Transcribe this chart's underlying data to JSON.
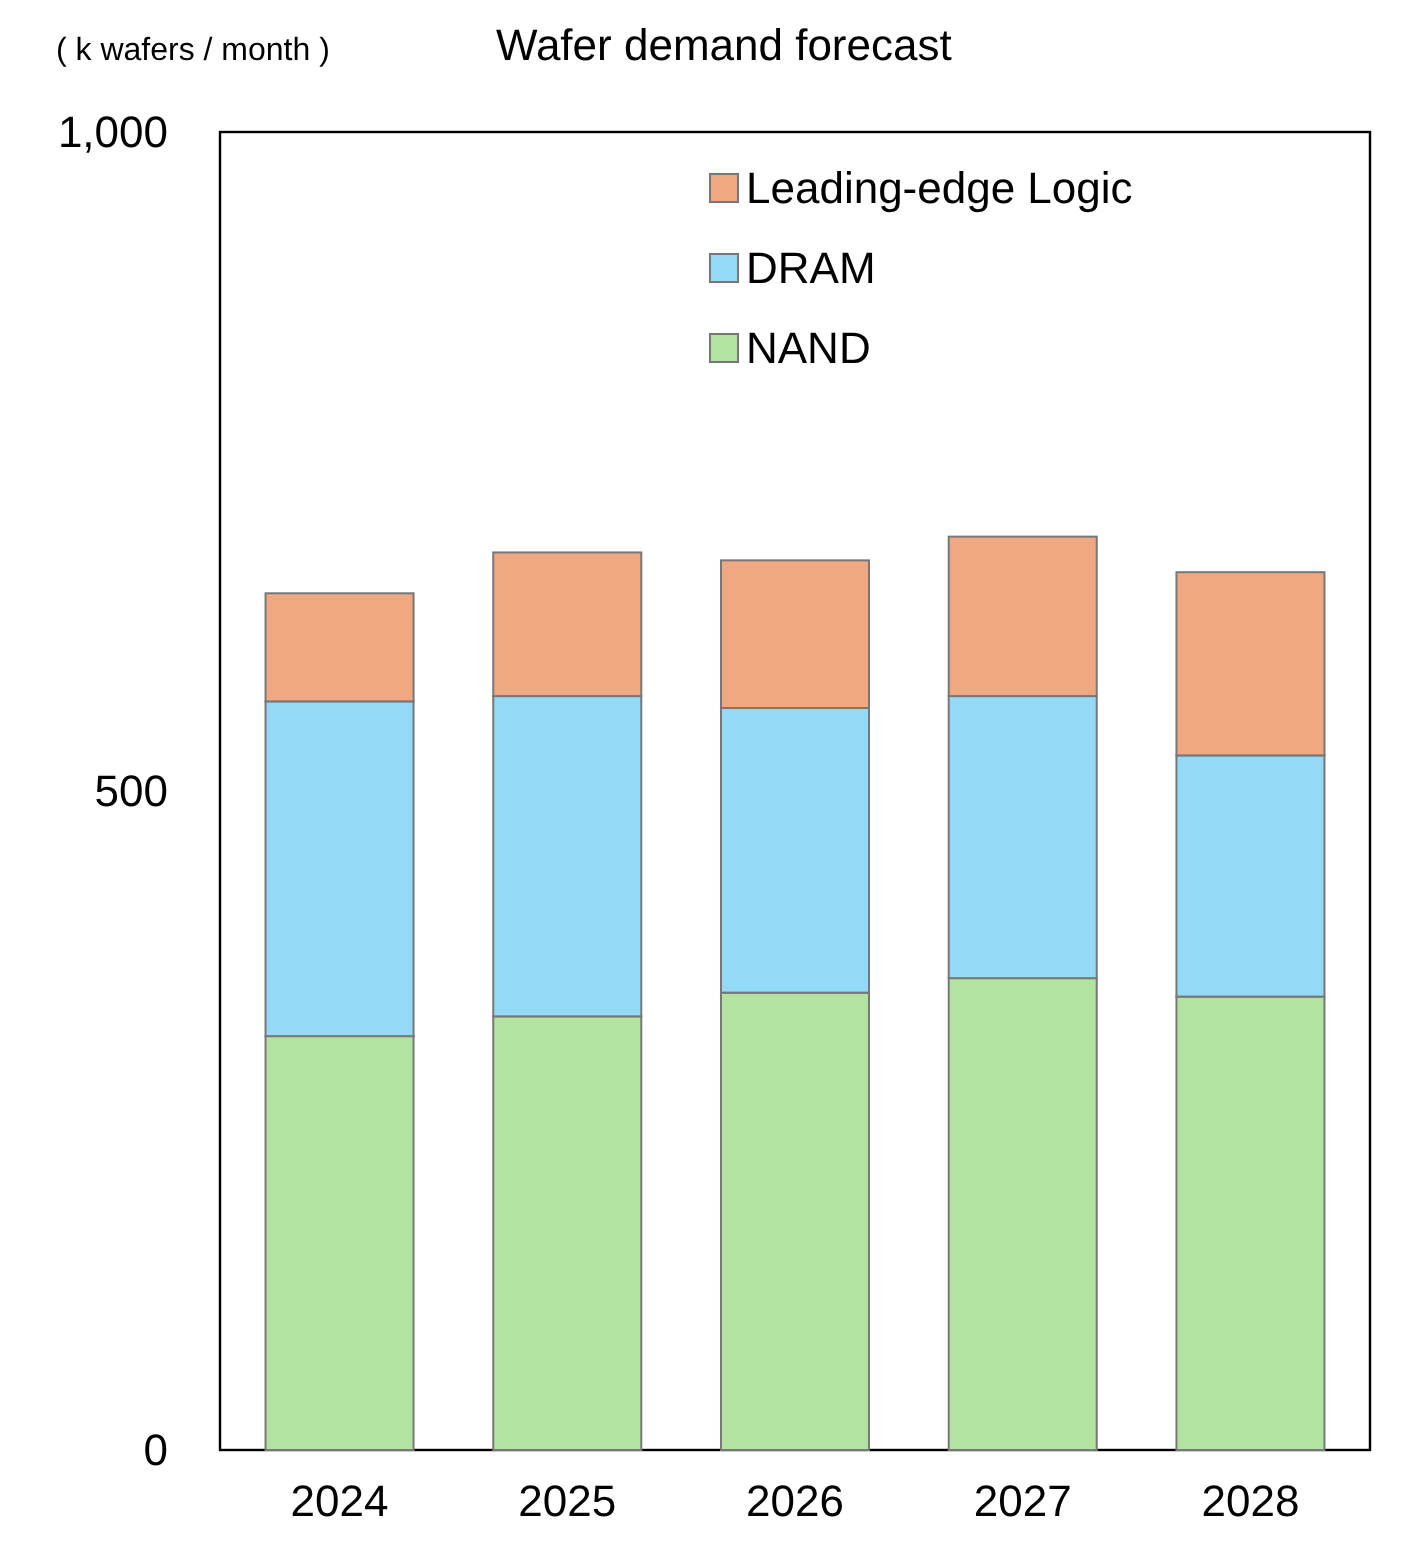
{
  "chart_data": {
    "type": "bar",
    "title": "Wafer demand forecast",
    "ylabel": "( k wafers / month )",
    "stacked": true,
    "categories": [
      "2024",
      "2025",
      "2026",
      "2027",
      "2028"
    ],
    "series": [
      {
        "name": "NAND",
        "color": "#b3e3a0",
        "values": [
          314,
          329,
          347,
          358,
          344
        ]
      },
      {
        "name": "DRAM",
        "color": "#94daf6",
        "values": [
          254,
          243,
          216,
          214,
          183
        ]
      },
      {
        "name": "Leading-edge Logic",
        "color": "#f0a882",
        "values": [
          82,
          109,
          112,
          121,
          139
        ]
      }
    ],
    "ylim": [
      0,
      1000
    ],
    "yticks": [
      0,
      500,
      {
        "value": 1000,
        "label": "1,000"
      }
    ],
    "grid": false,
    "legend": "top right"
  }
}
